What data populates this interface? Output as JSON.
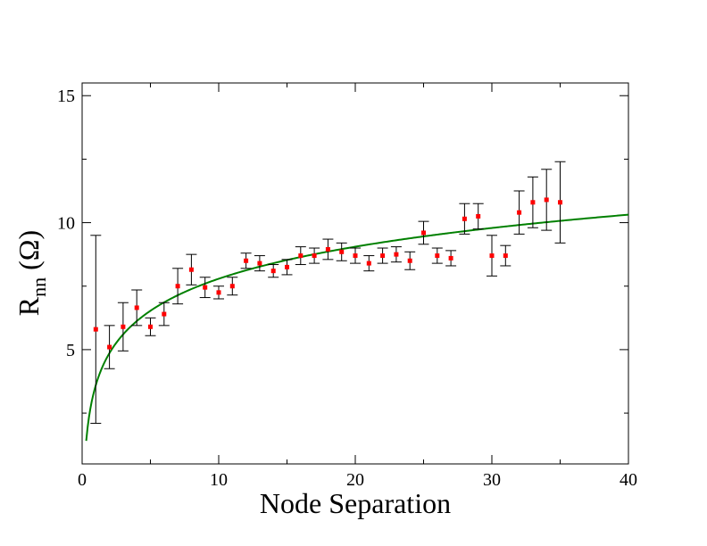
{
  "chart_data": {
    "type": "scatter",
    "title": "",
    "xlabel": "Node Separation",
    "ylabel": {
      "base": "R",
      "subscript": "nn",
      "unit": " (Ω)"
    },
    "xlim": [
      0,
      40
    ],
    "ylim": [
      0.5,
      15.5
    ],
    "x_major_ticks": [
      0,
      10,
      20,
      30,
      40
    ],
    "x_minor_ticks": [
      5,
      15,
      25,
      35
    ],
    "y_major_ticks": [
      5,
      10,
      15
    ],
    "y_minor_ticks": [
      2.5,
      7.5,
      12.5
    ],
    "x_tick_labels": [
      "0",
      "10",
      "20",
      "30",
      "40"
    ],
    "y_tick_labels": [
      "5",
      "10",
      "15"
    ],
    "grid": false,
    "legend": "none",
    "series": [
      {
        "marker_color": "#ff0000",
        "errorbar_color": "#000000",
        "x": [
          1,
          2,
          3,
          4,
          5,
          6,
          7,
          8,
          9,
          10,
          11,
          12,
          13,
          14,
          15,
          16,
          17,
          18,
          19,
          20,
          21,
          22,
          23,
          24,
          25,
          26,
          27,
          28,
          29,
          30,
          31,
          32,
          33,
          34,
          35
        ],
        "y": [
          5.8,
          5.1,
          5.9,
          6.65,
          5.9,
          6.4,
          7.5,
          8.15,
          7.45,
          7.25,
          7.5,
          8.5,
          8.4,
          8.1,
          8.25,
          8.7,
          8.7,
          8.95,
          8.85,
          8.7,
          8.4,
          8.7,
          8.75,
          8.5,
          9.6,
          8.7,
          8.6,
          10.15,
          10.25,
          8.7,
          8.7,
          10.4,
          10.8,
          10.9,
          10.8
        ],
        "err": [
          3.7,
          0.85,
          0.95,
          0.7,
          0.35,
          0.45,
          0.7,
          0.6,
          0.4,
          0.25,
          0.35,
          0.3,
          0.3,
          0.25,
          0.3,
          0.35,
          0.3,
          0.4,
          0.35,
          0.3,
          0.3,
          0.3,
          0.3,
          0.35,
          0.45,
          0.3,
          0.3,
          0.6,
          0.5,
          0.8,
          0.4,
          0.85,
          1.0,
          1.2,
          1.6
        ]
      },
      {
        "type": "line",
        "color": "#008000",
        "fit": {
          "form": "a + b*ln(x)",
          "a": 3.6,
          "b": 1.82
        },
        "x_range": [
          0.3,
          40
        ]
      }
    ]
  }
}
